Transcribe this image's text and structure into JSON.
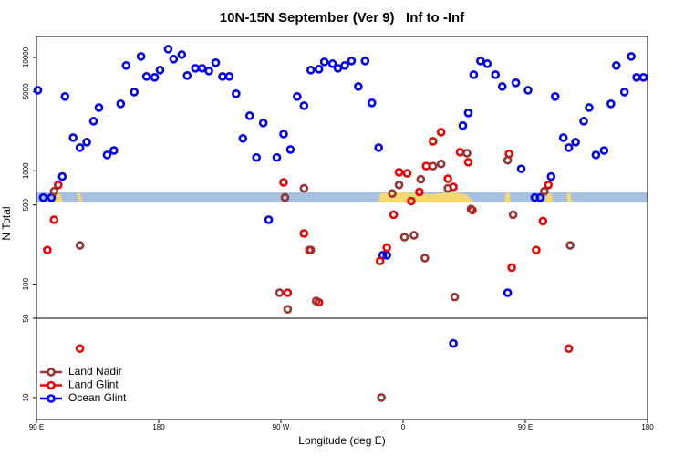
{
  "chart_data": {
    "type": "scatter",
    "title": "10N-15N September (Ver 9)   Inf to -Inf",
    "x_label": "Longitude (deg E)",
    "y_label": "N Total",
    "xlim": [
      90,
      540
    ],
    "xticks": [
      {
        "value": 90,
        "label": "90 E"
      },
      180,
      {
        "value": 270,
        "label": "90 W"
      },
      {
        "value": 360,
        "label": "0"
      },
      {
        "value": 450,
        "label": "90 E"
      },
      {
        "value": 540,
        "label": "180"
      }
    ],
    "ylim": [
      6.4,
      15300
    ],
    "yticks": [
      10,
      50,
      100,
      500,
      1000,
      5000,
      10000
    ],
    "log_y": true,
    "grid": false,
    "legend": "bottom-left",
    "series": [
      {
        "name": "Land Nadir",
        "color": "#993333",
        "x": [
          103,
          122,
          269,
          273,
          275,
          287,
          292,
          296,
          344,
          352,
          357,
          361,
          368,
          373,
          376,
          382,
          388,
          393,
          398,
          407,
          410,
          437,
          441,
          464,
          483
        ],
        "values": [
          660,
          220,
          84,
          580,
          60,
          700,
          200,
          71,
          10,
          630,
          750,
          260,
          270,
          840,
          170,
          1100,
          1150,
          700,
          77,
          1430,
          460,
          1240,
          410,
          660,
          220
        ]
      },
      {
        "name": "Land Glint",
        "color": "#ee0000",
        "x": [
          98,
          103,
          106,
          122,
          272,
          275,
          287,
          291,
          298,
          343,
          348,
          353,
          357,
          363,
          366,
          372,
          377,
          382,
          388,
          393,
          397,
          402,
          408,
          411,
          438,
          440,
          458,
          463,
          467,
          482
        ],
        "values": [
          200,
          370,
          750,
          27,
          790,
          84,
          280,
          200,
          69,
          160,
          210,
          410,
          970,
          950,
          540,
          650,
          1100,
          1820,
          2190,
          850,
          720,
          1460,
          1190,
          450,
          1410,
          140,
          200,
          360,
          750,
          27
        ]
      },
      {
        "name": "Ocean Glint",
        "color": "#0000ee",
        "x": [
          91,
          95,
          101,
          109,
          111,
          117,
          122,
          127,
          132,
          136,
          142,
          147,
          152,
          156,
          162,
          167,
          171,
          177,
          181,
          187,
          191,
          197,
          201,
          207,
          212,
          217,
          222,
          227,
          232,
          237,
          242,
          247,
          252,
          257,
          261,
          267,
          272,
          277,
          282,
          287,
          292,
          298,
          302,
          308,
          312,
          317,
          322,
          327,
          332,
          337,
          342,
          345,
          348,
          397,
          404,
          408,
          412,
          417,
          422,
          428,
          433,
          437,
          443,
          447,
          452,
          457,
          461,
          469,
          472,
          478,
          482,
          487,
          493,
          497,
          502,
          508,
          513,
          517,
          523,
          528,
          532,
          537
        ],
        "values": [
          5140,
          580,
          580,
          890,
          4520,
          1960,
          1600,
          1790,
          2740,
          3610,
          1380,
          1510,
          3900,
          8480,
          4950,
          10200,
          6790,
          6670,
          7730,
          11830,
          9660,
          10590,
          6920,
          8020,
          8020,
          7590,
          8970,
          6790,
          6790,
          4780,
          1930,
          3060,
          1310,
          2640,
          370,
          1310,
          2110,
          1540,
          4520,
          3750,
          7730,
          7880,
          9130,
          8800,
          8020,
          8480,
          9310,
          5540,
          9310,
          3970,
          1600,
          180,
          180,
          30,
          2500,
          3240,
          7040,
          9310,
          8800,
          7040,
          5540,
          84,
          5970,
          1040,
          5140,
          580,
          580,
          890,
          4520,
          1960,
          1600,
          1790,
          2740,
          3610,
          1380,
          1510,
          3900,
          8480,
          4950,
          10200,
          6670,
          6670
        ]
      }
    ]
  }
}
